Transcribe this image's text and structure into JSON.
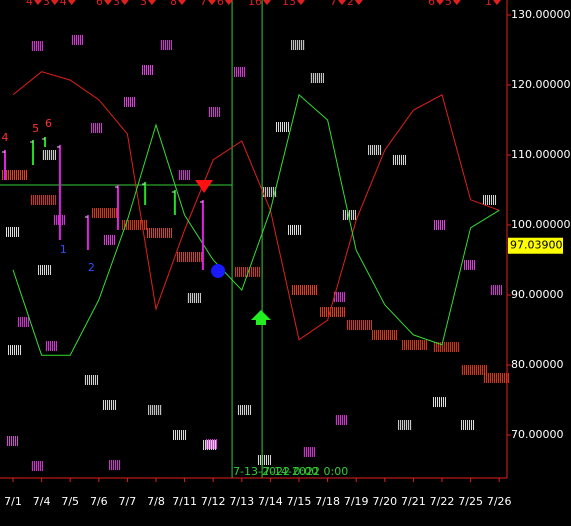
{
  "chart_data": {
    "type": "line",
    "categories": [
      "7/1",
      "7/4",
      "7/5",
      "7/6",
      "7/7",
      "7/8",
      "7/11",
      "7/12",
      "7/13",
      "7/14",
      "7/15",
      "7/18",
      "7/19",
      "7/20",
      "7/21",
      "7/22",
      "7/25",
      "7/26"
    ],
    "ylim": [
      63.86,
      132.14
    ],
    "yticks": [
      {
        "value": 130,
        "label": "130.00000"
      },
      {
        "value": 120,
        "label": "120.00000"
      },
      {
        "value": 110,
        "label": "110.00000"
      },
      {
        "value": 100,
        "label": "100.00000"
      },
      {
        "value": 90,
        "label": "90.00000"
      },
      {
        "value": 80,
        "label": "80.00000"
      },
      {
        "value": 70,
        "label": "70.00000"
      }
    ],
    "series": [
      {
        "name": "upper",
        "color": "#e0201a",
        "values": [
          118.6,
          121.9,
          120.7,
          117.9,
          113,
          88,
          99.3,
          109.3,
          112,
          102.1,
          83.6,
          86.4,
          100.7,
          110.7,
          116.4,
          118.6,
          103.6,
          102.1
        ]
      },
      {
        "name": "lower",
        "color": "#33dd33",
        "values": [
          93.6,
          81.4,
          81.4,
          89.3,
          100.7,
          114.3,
          101.4,
          95,
          90.7,
          102.1,
          118.6,
          115,
          96.4,
          88.6,
          84.3,
          82.9,
          99.6,
          102.1
        ]
      }
    ],
    "current_price": {
      "value": 97.039,
      "label": "97.03900"
    },
    "hline": 105.71,
    "vlines": [
      7.66,
      8.71
    ],
    "vline_labels": [
      "7-13-2022 0:00",
      "7-14-2022 0:00"
    ],
    "top_labels": [
      "4♥3♥4♥",
      "6♥3♥",
      "3♥",
      "8♥",
      "7♥6♥",
      "16♥",
      "13♥",
      "7♥2♥",
      "6♥5♥",
      "1♥"
    ],
    "wave_labels_red": [
      {
        "label": "4",
        "x": -0.4,
        "value": 112.43
      },
      {
        "label": "5",
        "x": 0.67,
        "value": 113.71
      },
      {
        "label": "6",
        "x": 1.12,
        "value": 114.43
      }
    ],
    "wave_labels_blue": [
      {
        "label": "1",
        "x": 1.64,
        "value": 96.43
      },
      {
        "label": "2",
        "x": 2.62,
        "value": 93.86
      }
    ],
    "signal_down": [
      6.68,
      105.71
    ],
    "signal_dot": [
      7.17,
      93.43
    ],
    "signal_up": [
      8.67,
      86.71
    ],
    "bars_down": [
      [
        -0.28,
        106.43,
        110.71
      ],
      [
        1.64,
        97.86,
        111.43
      ],
      [
        2.62,
        96.43,
        101.43
      ],
      [
        3.67,
        99.29,
        105.71
      ],
      [
        6.64,
        93.57,
        103.57
      ]
    ],
    "bars_up": [
      [
        0.7,
        108.57,
        112.14
      ],
      [
        1.12,
        111.14,
        112.57
      ],
      [
        4.62,
        102.86,
        106.14
      ],
      [
        5.66,
        101.43,
        105
      ]
    ],
    "hatch_pink": [
      [
        0.87,
        125.57
      ],
      [
        2.27,
        126.43
      ],
      [
        4.09,
        117.57
      ],
      [
        4.72,
        122.14
      ],
      [
        5.38,
        125.71
      ],
      [
        2.94,
        113.86
      ],
      [
        6.01,
        107.14
      ],
      [
        7.06,
        116.14
      ],
      [
        0.87,
        65.57
      ],
      [
        0.38,
        86.14
      ],
      [
        1.36,
        82.71
      ],
      [
        3.57,
        65.71
      ],
      [
        7.94,
        121.86
      ],
      [
        10.38,
        67.57
      ],
      [
        11.43,
        89.71
      ],
      [
        11.5,
        72.14
      ],
      [
        16.92,
        90.71
      ],
      [
        15.98,
        94.29
      ],
      [
        14.93,
        100
      ],
      [
        6.96,
        68.71
      ],
      [
        0,
        69.14
      ],
      [
        3.39,
        97.86
      ],
      [
        1.64,
        100.71
      ]
    ],
    "hatch_white": [
      [
        1.29,
        110
      ],
      [
        0,
        99
      ],
      [
        0.07,
        82.14
      ],
      [
        1.12,
        93.57
      ],
      [
        2.76,
        77.86
      ],
      [
        3.39,
        74.29
      ],
      [
        4.97,
        73.57
      ],
      [
        5.84,
        70
      ],
      [
        6.89,
        68.57
      ],
      [
        6.36,
        89.57
      ],
      [
        8.11,
        73.57
      ],
      [
        8.81,
        66.43
      ],
      [
        9.97,
        125.71
      ],
      [
        10.66,
        121
      ],
      [
        9.44,
        114
      ],
      [
        8.99,
        104.71
      ],
      [
        12.66,
        110.71
      ],
      [
        13.53,
        109.29
      ],
      [
        11.78,
        101.43
      ],
      [
        14.93,
        74.71
      ],
      [
        15.91,
        71.43
      ],
      [
        16.68,
        103.57
      ],
      [
        13.71,
        71.43
      ],
      [
        9.86,
        99.29
      ]
    ],
    "hatch_red": [
      [
        1.08,
        103.57
      ],
      [
        3.22,
        101.71
      ],
      [
        4.27,
        100
      ],
      [
        5.14,
        98.86
      ],
      [
        6.19,
        95.43
      ],
      [
        8.22,
        93.29
      ],
      [
        10.21,
        90.71
      ],
      [
        11.19,
        87.57
      ],
      [
        12.13,
        85.71
      ],
      [
        13.01,
        84.29
      ],
      [
        14.06,
        82.86
      ],
      [
        15.17,
        82.57
      ],
      [
        16.15,
        79.29
      ],
      [
        16.92,
        78.14
      ],
      [
        0.07,
        107.14
      ]
    ]
  }
}
